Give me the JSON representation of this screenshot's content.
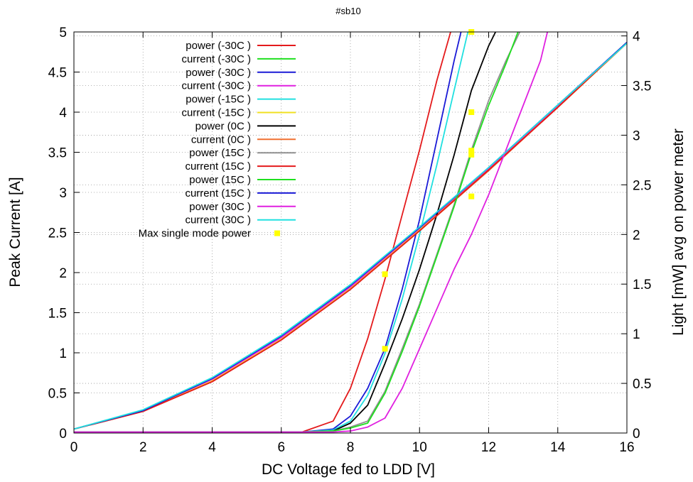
{
  "chart_data": {
    "type": "line",
    "title": "#sb10",
    "xlabel": "DC Voltage fed to LDD [V]",
    "ylabel": "Peak Current [A]",
    "y2label": "Light [mW] avg on power meter",
    "xlim": [
      0,
      16
    ],
    "ylim": [
      0,
      5
    ],
    "y2lim": [
      0,
      4.04
    ],
    "xticks": [
      "0",
      "2",
      "4",
      "6",
      "8",
      "10",
      "12",
      "14",
      "16"
    ],
    "yticks": [
      "0",
      "0.5",
      "1",
      "1.5",
      "2",
      "2.5",
      "3",
      "3.5",
      "4",
      "4.5",
      "5"
    ],
    "y2ticks": [
      "0",
      "0.5",
      "1",
      "1.5",
      "2",
      "2.5",
      "3",
      "3.5",
      "4"
    ],
    "grid": true,
    "legend_position": "top-left",
    "series": [
      {
        "name": "power (-30C )",
        "color": "#e41a1c",
        "axis": "y2",
        "x": [
          0,
          2,
          4,
          6,
          6.6,
          7.5,
          8,
          8.5,
          9,
          9.5,
          10,
          10.5,
          10.9
        ],
        "y": [
          0.01,
          0.01,
          0.01,
          0.01,
          0.01,
          0.12,
          0.45,
          0.95,
          1.55,
          2.2,
          2.85,
          3.55,
          4.04
        ]
      },
      {
        "name": "current (-30C )",
        "color": "#1fe01f",
        "axis": "y",
        "x": [
          0,
          2,
          4,
          6,
          8,
          10,
          12,
          14,
          16
        ],
        "y": [
          0.05,
          0.28,
          0.68,
          1.2,
          1.83,
          2.55,
          3.3,
          4.08,
          4.87
        ]
      },
      {
        "name": "power (-30C )",
        "color": "#1a1ad6",
        "axis": "y2",
        "x": [
          0,
          2,
          4,
          6,
          6.6,
          7.5,
          8,
          8.5,
          9,
          9.5,
          10,
          10.5,
          11,
          11.2
        ],
        "y": [
          0.01,
          0.01,
          0.01,
          0.01,
          0.01,
          0.04,
          0.17,
          0.45,
          0.85,
          1.45,
          2.15,
          2.95,
          3.75,
          4.04
        ]
      },
      {
        "name": "current (-30C )",
        "color": "#e020e0",
        "axis": "y",
        "x": [
          0,
          2,
          4,
          6,
          8,
          10,
          12,
          14,
          16
        ],
        "y": [
          0.05,
          0.28,
          0.67,
          1.19,
          1.82,
          2.54,
          3.29,
          4.07,
          4.86
        ]
      },
      {
        "name": "power (-15C )",
        "color": "#20e0e0",
        "axis": "y2",
        "x": [
          0,
          2,
          4,
          6,
          6.6,
          7.5,
          8,
          8.5,
          9,
          9.5,
          10,
          10.5,
          11,
          11.4
        ],
        "y": [
          0.01,
          0.01,
          0.01,
          0.01,
          0.01,
          0.03,
          0.12,
          0.38,
          0.8,
          1.35,
          2.0,
          2.7,
          3.45,
          4.04
        ]
      },
      {
        "name": "current (-15C )",
        "color": "#f0e020",
        "axis": "y",
        "x": [
          0,
          2,
          4,
          6,
          8,
          10,
          12,
          14,
          16
        ],
        "y": [
          0.05,
          0.27,
          0.65,
          1.17,
          1.8,
          2.53,
          3.28,
          4.06,
          4.86
        ]
      },
      {
        "name": "power (0C )",
        "color": "#000000",
        "axis": "y2",
        "x": [
          0,
          2,
          4,
          6,
          6.6,
          7.5,
          8,
          8.5,
          9,
          9.5,
          10,
          10.5,
          11,
          11.5,
          12,
          12.2
        ],
        "y": [
          0.01,
          0.01,
          0.01,
          0.01,
          0.01,
          0.02,
          0.1,
          0.28,
          0.7,
          1.15,
          1.65,
          2.2,
          2.8,
          3.45,
          3.9,
          4.04
        ]
      },
      {
        "name": "current (0C )",
        "color": "#f07030",
        "axis": "y",
        "x": [
          0,
          2,
          4,
          6,
          8,
          10,
          12,
          14,
          16
        ],
        "y": [
          0.05,
          0.27,
          0.64,
          1.16,
          1.79,
          2.52,
          3.27,
          4.06,
          4.86
        ]
      },
      {
        "name": "power (15C )",
        "color": "#909090",
        "axis": "y2",
        "x": [
          0,
          2,
          4,
          6,
          6.6,
          7.5,
          8,
          8.5,
          9,
          9.5,
          10,
          10.5,
          11,
          11.5,
          12,
          12.5,
          12.9
        ],
        "y": [
          0.01,
          0.01,
          0.01,
          0.01,
          0.01,
          0.02,
          0.06,
          0.12,
          0.42,
          0.85,
          1.3,
          1.8,
          2.3,
          2.85,
          3.35,
          3.75,
          4.04
        ]
      },
      {
        "name": "current (15C )",
        "color": "#e41a1c",
        "axis": "y",
        "x": [
          0,
          2,
          4,
          6,
          8,
          10,
          12,
          14,
          16
        ],
        "y": [
          0.05,
          0.27,
          0.64,
          1.16,
          1.79,
          2.52,
          3.28,
          4.06,
          4.87
        ]
      },
      {
        "name": "power (15C )",
        "color": "#1fe01f",
        "axis": "y2",
        "x": [
          0,
          2,
          4,
          6,
          6.6,
          7.5,
          8,
          8.5,
          9,
          9.5,
          10,
          10.5,
          11,
          11.5,
          12,
          12.5,
          12.85
        ],
        "y": [
          0.01,
          0.01,
          0.01,
          0.01,
          0.01,
          0.02,
          0.05,
          0.1,
          0.4,
          0.82,
          1.28,
          1.78,
          2.28,
          2.82,
          3.3,
          3.72,
          4.04
        ]
      },
      {
        "name": "current (15C )",
        "color": "#1a1ad6",
        "axis": "y",
        "x": [
          0,
          2,
          4,
          6,
          8,
          10,
          12,
          14,
          16
        ],
        "y": [
          0.05,
          0.28,
          0.68,
          1.21,
          1.84,
          2.56,
          3.31,
          4.09,
          4.87
        ]
      },
      {
        "name": "power (30C )",
        "color": "#e020e0",
        "axis": "y2",
        "x": [
          0,
          2,
          4,
          6,
          6.6,
          7.5,
          8,
          8.5,
          9,
          9.5,
          10,
          10.5,
          11,
          11.5,
          12,
          12.5,
          13,
          13.5,
          13.7
        ],
        "y": [
          0.01,
          0.01,
          0.01,
          0.01,
          0.01,
          0.01,
          0.02,
          0.06,
          0.15,
          0.45,
          0.85,
          1.25,
          1.65,
          2.0,
          2.4,
          2.85,
          3.3,
          3.75,
          4.04
        ]
      },
      {
        "name": "current (30C )",
        "color": "#20e0e0",
        "axis": "y",
        "x": [
          0,
          2,
          4,
          6,
          8,
          10,
          12,
          14,
          16
        ],
        "y": [
          0.05,
          0.29,
          0.69,
          1.22,
          1.85,
          2.57,
          3.31,
          4.09,
          4.86
        ]
      }
    ],
    "points": {
      "name": "Max single mode power",
      "color": "#ffff00",
      "axis": "y",
      "x": [
        9.0,
        9.0,
        11.5,
        11.5,
        11.5,
        11.5,
        11.5
      ],
      "y": [
        1.05,
        1.98,
        5.0,
        4.0,
        3.52,
        3.47,
        2.95
      ]
    }
  }
}
